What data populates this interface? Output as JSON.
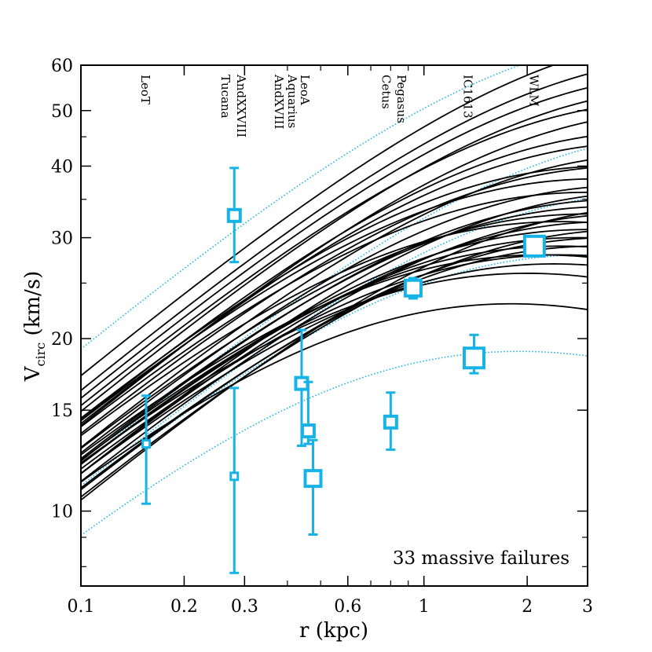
{
  "chart_data": {
    "type": "line",
    "xscale": "log",
    "yscale": "log",
    "xlim": [
      0.1,
      3
    ],
    "ylim": [
      7.4,
      60
    ],
    "xlabel": "r (kpc)",
    "ylabel_main": "V",
    "ylabel_sub": "circ",
    "ylabel_unit": "(km/s)",
    "xticks": [
      {
        "value": 0.1,
        "label": "0.1"
      },
      {
        "value": 0.2,
        "label": "0.2"
      },
      {
        "value": 0.3,
        "label": "0.3"
      },
      {
        "value": 0.6,
        "label": "0.6"
      },
      {
        "value": 1,
        "label": "1"
      },
      {
        "value": 2,
        "label": "2"
      },
      {
        "value": 3,
        "label": "3"
      }
    ],
    "yticks": [
      {
        "value": 10,
        "label": "10"
      },
      {
        "value": 15,
        "label": "15"
      },
      {
        "value": 20,
        "label": "20"
      },
      {
        "value": 30,
        "label": "30"
      },
      {
        "value": 40,
        "label": "40"
      },
      {
        "value": 50,
        "label": "50"
      },
      {
        "value": 60,
        "label": "60"
      }
    ],
    "annotation": "33 massive failures",
    "colors": {
      "curves": "#000000",
      "data": "#17b3e6",
      "nfw_bounds": "#17b3e6"
    },
    "galaxy_labels": [
      {
        "text": "LeoT",
        "r": 0.155
      },
      {
        "text": "Tucana",
        "r": 0.265
      },
      {
        "text": "AndXXVIII",
        "r": 0.295
      },
      {
        "text": "AndXVIII",
        "r": 0.38
      },
      {
        "text": "Aquarius",
        "r": 0.415
      },
      {
        "text": "LeoA",
        "r": 0.452
      },
      {
        "text": "Cetus",
        "r": 0.78
      },
      {
        "text": "Pegasus",
        "r": 0.865
      },
      {
        "text": "IC1613",
        "r": 1.35
      },
      {
        "text": "WLM",
        "r": 2.1
      }
    ],
    "points": [
      {
        "name": "LeoT",
        "r": 0.155,
        "v": 13.1,
        "v_lo": 10.3,
        "v_hi": 15.9,
        "size": "small"
      },
      {
        "name": "Tucana",
        "r": 0.28,
        "v": 32.8,
        "v_lo": 27.2,
        "v_hi": 39.7,
        "size": "medium"
      },
      {
        "name": "AndXXVIII",
        "r": 0.28,
        "v": 11.5,
        "v_lo": 7.8,
        "v_hi": 16.4,
        "size": "small"
      },
      {
        "name": "AndXVIII",
        "r": 0.44,
        "v": 16.7,
        "v_lo": 13.0,
        "v_hi": 20.7,
        "size": "medium"
      },
      {
        "name": "Aquarius",
        "r": 0.46,
        "v": 13.8,
        "v_lo": 13.1,
        "v_hi": 16.8,
        "size": "medium"
      },
      {
        "name": "LeoA",
        "r": 0.475,
        "v": 11.4,
        "v_lo": 9.1,
        "v_hi": 13.3,
        "size": "large"
      },
      {
        "name": "Cetus",
        "r": 0.8,
        "v": 14.3,
        "v_lo": 12.8,
        "v_hi": 16.1,
        "size": "medium"
      },
      {
        "name": "Pegasus",
        "r": 0.93,
        "v": 24.5,
        "v_lo": 23.5,
        "v_hi": 25.5,
        "size": "large"
      },
      {
        "name": "IC1613",
        "r": 1.4,
        "v": 18.5,
        "v_lo": 17.4,
        "v_hi": 20.3,
        "size": "xlarge"
      },
      {
        "name": "WLM",
        "r": 2.1,
        "v": 29.0,
        "v_lo": 28.0,
        "v_hi": 30.0,
        "size": "xlarge"
      }
    ],
    "nfw_bound_curves": [
      {
        "vmax": 68,
        "rmax": 6.0
      },
      {
        "vmax": 46,
        "rmax": 7.0
      },
      {
        "vmax": 36,
        "rmax": 5.0
      },
      {
        "vmax": 28,
        "rmax": 3.0
      },
      {
        "vmax": 19,
        "rmax": 1.9
      }
    ],
    "subhalo_curves": [
      {
        "vmax": 68,
        "rmax": 7.5
      },
      {
        "vmax": 62,
        "rmax": 7.0
      },
      {
        "vmax": 58,
        "rmax": 6.5
      },
      {
        "vmax": 55,
        "rmax": 6.5
      },
      {
        "vmax": 52,
        "rmax": 5.5
      },
      {
        "vmax": 50,
        "rmax": 6.0
      },
      {
        "vmax": 46,
        "rmax": 4.8
      },
      {
        "vmax": 44,
        "rmax": 4.5
      },
      {
        "vmax": 42,
        "rmax": 5.0
      },
      {
        "vmax": 40,
        "rmax": 4.0
      },
      {
        "vmax": 40,
        "rmax": 3.5
      },
      {
        "vmax": 38,
        "rmax": 3.2
      },
      {
        "vmax": 37,
        "rmax": 4.0
      },
      {
        "vmax": 36,
        "rmax": 3.0
      },
      {
        "vmax": 36,
        "rmax": 4.5
      },
      {
        "vmax": 35,
        "rmax": 3.8
      },
      {
        "vmax": 34,
        "rmax": 3.5
      },
      {
        "vmax": 34,
        "rmax": 5.0
      },
      {
        "vmax": 33,
        "rmax": 4.0
      },
      {
        "vmax": 33,
        "rmax": 3.0
      },
      {
        "vmax": 32,
        "rmax": 2.5
      },
      {
        "vmax": 32,
        "rmax": 3.5
      },
      {
        "vmax": 31,
        "rmax": 3.0
      },
      {
        "vmax": 31,
        "rmax": 4.0
      },
      {
        "vmax": 30,
        "rmax": 2.8
      },
      {
        "vmax": 30,
        "rmax": 3.5
      },
      {
        "vmax": 29,
        "rmax": 2.5
      },
      {
        "vmax": 29,
        "rmax": 3.2
      },
      {
        "vmax": 28,
        "rmax": 2.5
      },
      {
        "vmax": 28,
        "rmax": 2.2
      },
      {
        "vmax": 27,
        "rmax": 2.4
      },
      {
        "vmax": 26,
        "rmax": 2.0
      },
      {
        "vmax": 23,
        "rmax": 1.8
      }
    ]
  }
}
